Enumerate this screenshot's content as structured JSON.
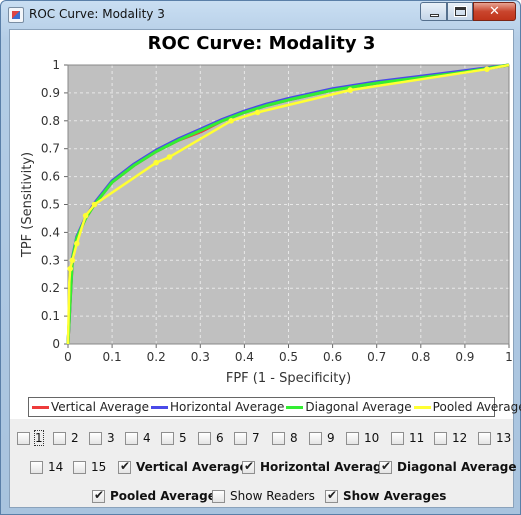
{
  "window": {
    "title": "ROC Curve: Modality 3"
  },
  "colors": {
    "vertical": "#ee3b3b",
    "horizontal": "#4a4ae8",
    "diagonal": "#33ee33",
    "pooled": "#ffff33",
    "plot_bg": "#c0c0c0",
    "grid": "#e8e8e8"
  },
  "chart_data": {
    "type": "line",
    "title": "ROC Curve: Modality 3",
    "xlabel": "FPF (1 - Specificity)",
    "ylabel": "TPF (Sensitivity)",
    "xlim": [
      0,
      1
    ],
    "ylim": [
      0,
      1
    ],
    "grid": true,
    "legend_position": "bottom",
    "x_ticks": [
      "0",
      "0.1",
      "0.2",
      "0.3",
      "0.4",
      "0.5",
      "0.6",
      "0.7",
      "0.8",
      "0.9",
      "1"
    ],
    "y_ticks": [
      "0",
      "0.1",
      "0.2",
      "0.3",
      "0.4",
      "0.5",
      "0.6",
      "0.7",
      "0.8",
      "0.9",
      "1"
    ],
    "series": [
      {
        "name": "Vertical Average",
        "color": "#ee3b3b",
        "points": [
          [
            0,
            0
          ],
          [
            0.005,
            0.15
          ],
          [
            0.01,
            0.3
          ],
          [
            0.02,
            0.38
          ],
          [
            0.04,
            0.45
          ],
          [
            0.06,
            0.5
          ],
          [
            0.1,
            0.58
          ],
          [
            0.15,
            0.64
          ],
          [
            0.2,
            0.69
          ],
          [
            0.25,
            0.73
          ],
          [
            0.3,
            0.76
          ],
          [
            0.35,
            0.8
          ],
          [
            0.4,
            0.83
          ],
          [
            0.45,
            0.855
          ],
          [
            0.5,
            0.875
          ],
          [
            0.6,
            0.91
          ],
          [
            0.7,
            0.935
          ],
          [
            0.8,
            0.955
          ],
          [
            0.9,
            0.975
          ],
          [
            1,
            1
          ]
        ]
      },
      {
        "name": "Horizontal Average",
        "color": "#4a4ae8",
        "points": [
          [
            0,
            0
          ],
          [
            0.005,
            0.16
          ],
          [
            0.01,
            0.31
          ],
          [
            0.02,
            0.385
          ],
          [
            0.04,
            0.455
          ],
          [
            0.06,
            0.505
          ],
          [
            0.1,
            0.585
          ],
          [
            0.15,
            0.645
          ],
          [
            0.2,
            0.695
          ],
          [
            0.25,
            0.735
          ],
          [
            0.3,
            0.77
          ],
          [
            0.35,
            0.805
          ],
          [
            0.4,
            0.835
          ],
          [
            0.45,
            0.86
          ],
          [
            0.5,
            0.88
          ],
          [
            0.6,
            0.915
          ],
          [
            0.7,
            0.94
          ],
          [
            0.8,
            0.96
          ],
          [
            0.9,
            0.98
          ],
          [
            1,
            1
          ]
        ]
      },
      {
        "name": "Diagonal Average",
        "color": "#33ee33",
        "points": [
          [
            0,
            0
          ],
          [
            0.005,
            0.155
          ],
          [
            0.01,
            0.305
          ],
          [
            0.02,
            0.38
          ],
          [
            0.04,
            0.45
          ],
          [
            0.06,
            0.5
          ],
          [
            0.1,
            0.58
          ],
          [
            0.15,
            0.64
          ],
          [
            0.2,
            0.69
          ],
          [
            0.25,
            0.73
          ],
          [
            0.3,
            0.765
          ],
          [
            0.35,
            0.8
          ],
          [
            0.4,
            0.83
          ],
          [
            0.45,
            0.855
          ],
          [
            0.5,
            0.875
          ],
          [
            0.6,
            0.91
          ],
          [
            0.7,
            0.935
          ],
          [
            0.8,
            0.955
          ],
          [
            0.9,
            0.975
          ],
          [
            1,
            1
          ]
        ]
      },
      {
        "name": "Pooled Average",
        "color": "#ffff33",
        "points": [
          [
            0,
            0
          ],
          [
            0.003,
            0.22
          ],
          [
            0.005,
            0.27
          ],
          [
            0.01,
            0.3
          ],
          [
            0.02,
            0.36
          ],
          [
            0.04,
            0.46
          ],
          [
            0.06,
            0.5
          ],
          [
            0.2,
            0.65
          ],
          [
            0.23,
            0.67
          ],
          [
            0.37,
            0.8
          ],
          [
            0.43,
            0.83
          ],
          [
            0.64,
            0.91
          ],
          [
            0.95,
            0.985
          ],
          [
            1,
            1
          ]
        ],
        "markers": [
          [
            0.005,
            0.27
          ],
          [
            0.01,
            0.3
          ],
          [
            0.02,
            0.36
          ],
          [
            0.04,
            0.46
          ],
          [
            0.06,
            0.5
          ],
          [
            0.2,
            0.65
          ],
          [
            0.23,
            0.67
          ],
          [
            0.37,
            0.8
          ],
          [
            0.43,
            0.83
          ],
          [
            0.64,
            0.91
          ],
          [
            0.95,
            0.985
          ]
        ]
      }
    ]
  },
  "legend": {
    "items": [
      {
        "label": "Vertical Average",
        "color": "#ee3b3b"
      },
      {
        "label": "Horizontal Average",
        "color": "#4a4ae8"
      },
      {
        "label": "Diagonal Average",
        "color": "#33ee33"
      },
      {
        "label": "Pooled Average",
        "color": "#ffff33"
      }
    ]
  },
  "controls": {
    "readers": [
      {
        "label": "1",
        "checked": false
      },
      {
        "label": "2",
        "checked": false
      },
      {
        "label": "3",
        "checked": false
      },
      {
        "label": "4",
        "checked": false
      },
      {
        "label": "5",
        "checked": false
      },
      {
        "label": "6",
        "checked": false
      },
      {
        "label": "7",
        "checked": false
      },
      {
        "label": "8",
        "checked": false
      },
      {
        "label": "9",
        "checked": false
      },
      {
        "label": "10",
        "checked": false
      },
      {
        "label": "11",
        "checked": false
      },
      {
        "label": "12",
        "checked": false
      },
      {
        "label": "13",
        "checked": false
      },
      {
        "label": "14",
        "checked": false
      },
      {
        "label": "15",
        "checked": false
      }
    ],
    "vertical_average": {
      "label": "Vertical Average",
      "checked": true
    },
    "horizontal_average": {
      "label": "Horizontal Average",
      "checked": true
    },
    "diagonal_average": {
      "label": "Diagonal Average",
      "checked": true
    },
    "pooled_average": {
      "label": "Pooled Average",
      "checked": true
    },
    "show_readers": {
      "label": "Show Readers",
      "checked": false
    },
    "show_averages": {
      "label": "Show Averages",
      "checked": true
    }
  }
}
